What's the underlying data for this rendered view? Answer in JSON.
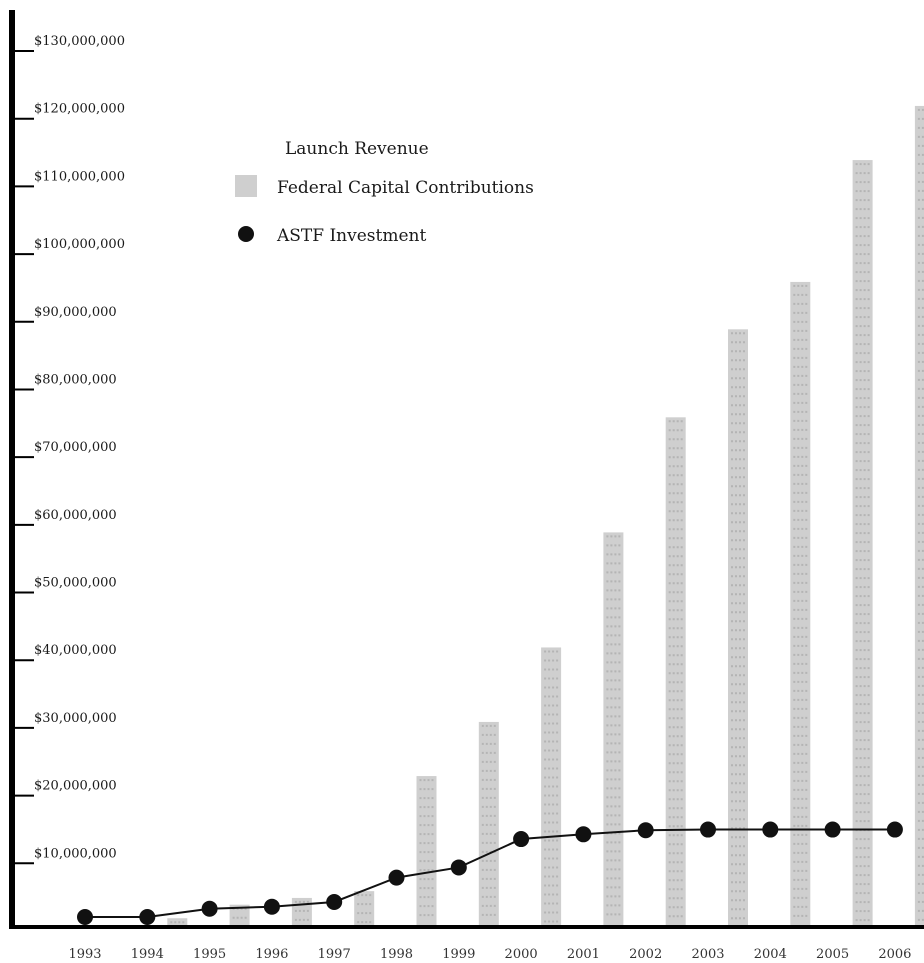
{
  "chart_data": {
    "type": "bar",
    "categories": [
      "1993",
      "1994",
      "1995",
      "1996",
      "1997",
      "1998",
      "1999",
      "2000",
      "2001",
      "2002",
      "2003",
      "2004",
      "2005",
      "2006"
    ],
    "series": [
      {
        "name": "Federal Capital Contributions",
        "kind": "bar",
        "values": [
          0,
          1000000,
          3000000,
          4000000,
          5000000,
          22000000,
          30000000,
          41000000,
          58000000,
          75000000,
          88000000,
          95000000,
          113000000,
          121000000
        ]
      },
      {
        "name": "ASTF Investment",
        "kind": "line-marker",
        "values": [
          0,
          300000,
          2400000,
          2700000,
          3400000,
          7000000,
          8500000,
          12700000,
          13400000,
          14000000,
          14100000,
          14100000,
          14100000,
          14100000
        ]
      }
    ],
    "legend": [
      "Launch Revenue",
      "Federal Capital Contributions",
      "ASTF Investment"
    ],
    "legend_placement": "top-left",
    "ylim": [
      0,
      130000000
    ],
    "yticks": [
      "$10,000,000",
      "$20,000,000",
      "$30,000,000",
      "$40,000,000",
      "$50,000,000",
      "$60,000,000",
      "$70,000,000",
      "$80,000,000",
      "$90,000,000",
      "$100,000,000",
      "$110,000,000",
      "$120,000,000",
      "$130,000,000"
    ],
    "grid": false,
    "colors": {
      "bar": "#cfcfcf",
      "bar_texture": "#b4b4b4",
      "line": "#111111",
      "axis": "#000000"
    }
  }
}
